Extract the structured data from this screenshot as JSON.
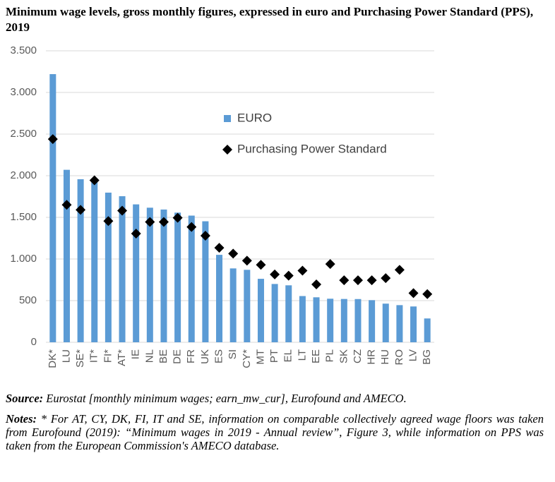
{
  "chart_data": {
    "type": "bar",
    "title": "Minimum wage levels, gross monthly figures, expressed in euro and Purchasing Power Standard (PPS), 2019",
    "categories": [
      "DK*",
      "LU",
      "SE*",
      "IT*",
      "FI*",
      "AT*",
      "IE",
      "NL",
      "BE",
      "DE",
      "FR",
      "UK",
      "ES",
      "SI",
      "CY*",
      "MT",
      "PT",
      "EL",
      "LT",
      "EE",
      "PL",
      "SK",
      "CZ",
      "HR",
      "HU",
      "RO",
      "LV",
      "BG"
    ],
    "series": [
      {
        "name": "EURO",
        "type": "bar",
        "color": "#5b9bd5",
        "values": [
          3220,
          2071,
          1958,
          1925,
          1797,
          1754,
          1656,
          1616,
          1594,
          1557,
          1521,
          1453,
          1050,
          887,
          870,
          762,
          700,
          684,
          555,
          540,
          523,
          520,
          519,
          506,
          464,
          446,
          430,
          286
        ]
      },
      {
        "name": "Purchasing Power Standard",
        "type": "scatter",
        "marker": "diamond",
        "color": "#000000",
        "values": [
          2440,
          1650,
          1590,
          1945,
          1455,
          1580,
          1305,
          1445,
          1445,
          1495,
          1385,
          1280,
          1135,
          1065,
          980,
          930,
          815,
          800,
          860,
          695,
          940,
          745,
          745,
          745,
          770,
          870,
          590,
          578
        ]
      }
    ],
    "ylim": [
      0,
      3500
    ],
    "yticks": [
      {
        "value": 0,
        "label": "0"
      },
      {
        "value": 500,
        "label": "500"
      },
      {
        "value": 1000,
        "label": "1.000"
      },
      {
        "value": 1500,
        "label": "1.500"
      },
      {
        "value": 2000,
        "label": "2.000"
      },
      {
        "value": 2500,
        "label": "2.500"
      },
      {
        "value": 3000,
        "label": "3.000"
      },
      {
        "value": 3500,
        "label": "3.500"
      }
    ],
    "grid": true
  },
  "source": {
    "label": "Source:",
    "text": "Eurostat [monthly minimum wages; earn_mw_cur], Eurofound and AMECO."
  },
  "notes": {
    "label": "Notes:",
    "text": "* For AT, CY, DK, FI, IT and SE, information on comparable collectively agreed wage floors was taken from Eurofound (2019): “Minimum wages in 2019 - Annual review”, Figure 3, while information on PPS was taken from the European Commission's AMECO database."
  }
}
